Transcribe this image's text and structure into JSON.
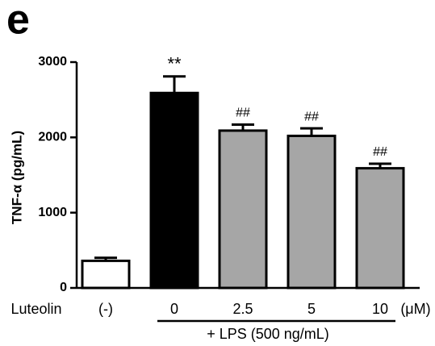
{
  "chart_data": {
    "type": "bar",
    "panel_label": "e",
    "ylabel": "TNF-α (pg/mL)",
    "categories": [
      "(-)",
      "0",
      "2.5",
      "5",
      "10"
    ],
    "values": [
      360,
      2590,
      2090,
      2020,
      1590
    ],
    "errors": [
      40,
      220,
      80,
      100,
      60
    ],
    "colors": [
      "#ffffff",
      "#000000",
      "#a6a6a6",
      "#a6a6a6",
      "#a6a6a6"
    ],
    "annotations": [
      null,
      "**",
      "##",
      "##",
      "##"
    ],
    "x_prefix": "Luteolin",
    "x_suffix": "(μM)",
    "group_label": "+ LPS (500 ng/mL)",
    "ylim": [
      0,
      3000
    ],
    "yticks": [
      0,
      1000,
      2000,
      3000
    ]
  }
}
